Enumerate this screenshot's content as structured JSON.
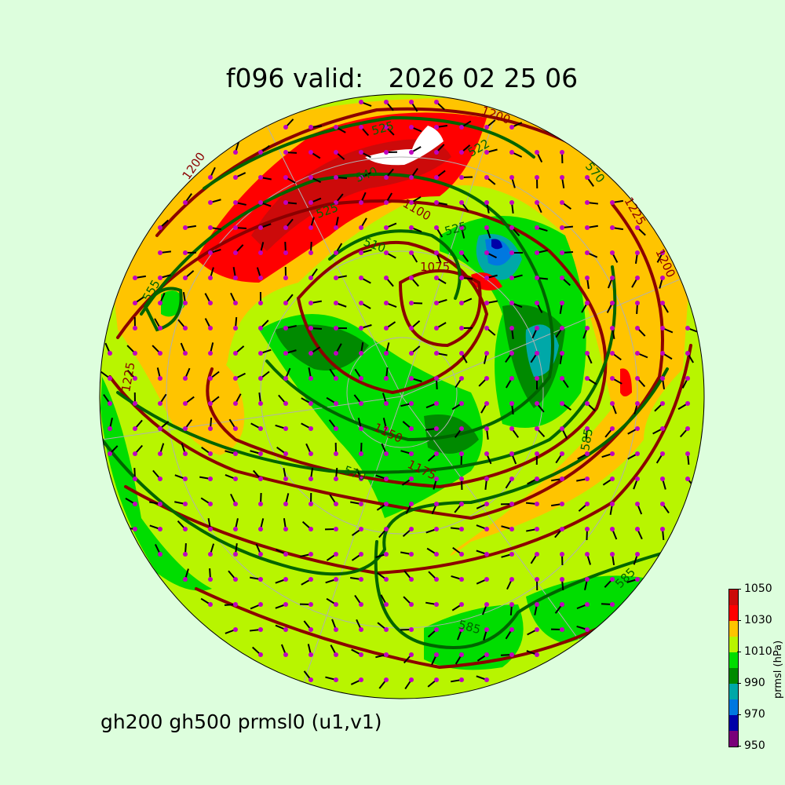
{
  "title": "f096 valid:   2026 02 25 06",
  "subtitle": "gh200 gh500 prmsl0 (u1,v1)",
  "colorbar": {
    "label": "prmsl (hPa)",
    "ticks": [
      "950",
      "970",
      "990",
      "1010",
      "1030",
      "1050"
    ],
    "colors": [
      "#7a007a",
      "#0000a8",
      "#0078e0",
      "#00a8a8",
      "#008a00",
      "#00dd00",
      "#b8f500",
      "#ffc400",
      "#ff0000",
      "#cc0a0a"
    ]
  },
  "colors": {
    "gh200_contour": "#8b0000",
    "gh500_contour": "#006400",
    "wind_barb": "#000000",
    "wind_dot": "#c000c0",
    "background": "#ddfedd"
  },
  "contour_labels": [
    {
      "text": "1200",
      "color": "gh200"
    },
    {
      "text": "525",
      "color": "gh500"
    },
    {
      "text": "522",
      "color": "gh500"
    },
    {
      "text": "540",
      "color": "gh500"
    },
    {
      "text": "525",
      "color": "gh500"
    },
    {
      "text": "510",
      "color": "gh500"
    },
    {
      "text": "1100",
      "color": "gh200"
    },
    {
      "text": "525",
      "color": "gh500"
    },
    {
      "text": "1075",
      "color": "gh200"
    },
    {
      "text": "570",
      "color": "gh500"
    },
    {
      "text": "1200",
      "color": "gh200"
    },
    {
      "text": "1225",
      "color": "gh200"
    },
    {
      "text": "1200",
      "color": "gh200"
    },
    {
      "text": "555",
      "color": "gh500"
    },
    {
      "text": "1225",
      "color": "gh200"
    },
    {
      "text": "1150",
      "color": "gh200"
    },
    {
      "text": "1175",
      "color": "gh200"
    },
    {
      "text": "570",
      "color": "gh500"
    },
    {
      "text": "585",
      "color": "gh500"
    },
    {
      "text": "585",
      "color": "gh500"
    },
    {
      "text": "585",
      "color": "gh500"
    }
  ]
}
